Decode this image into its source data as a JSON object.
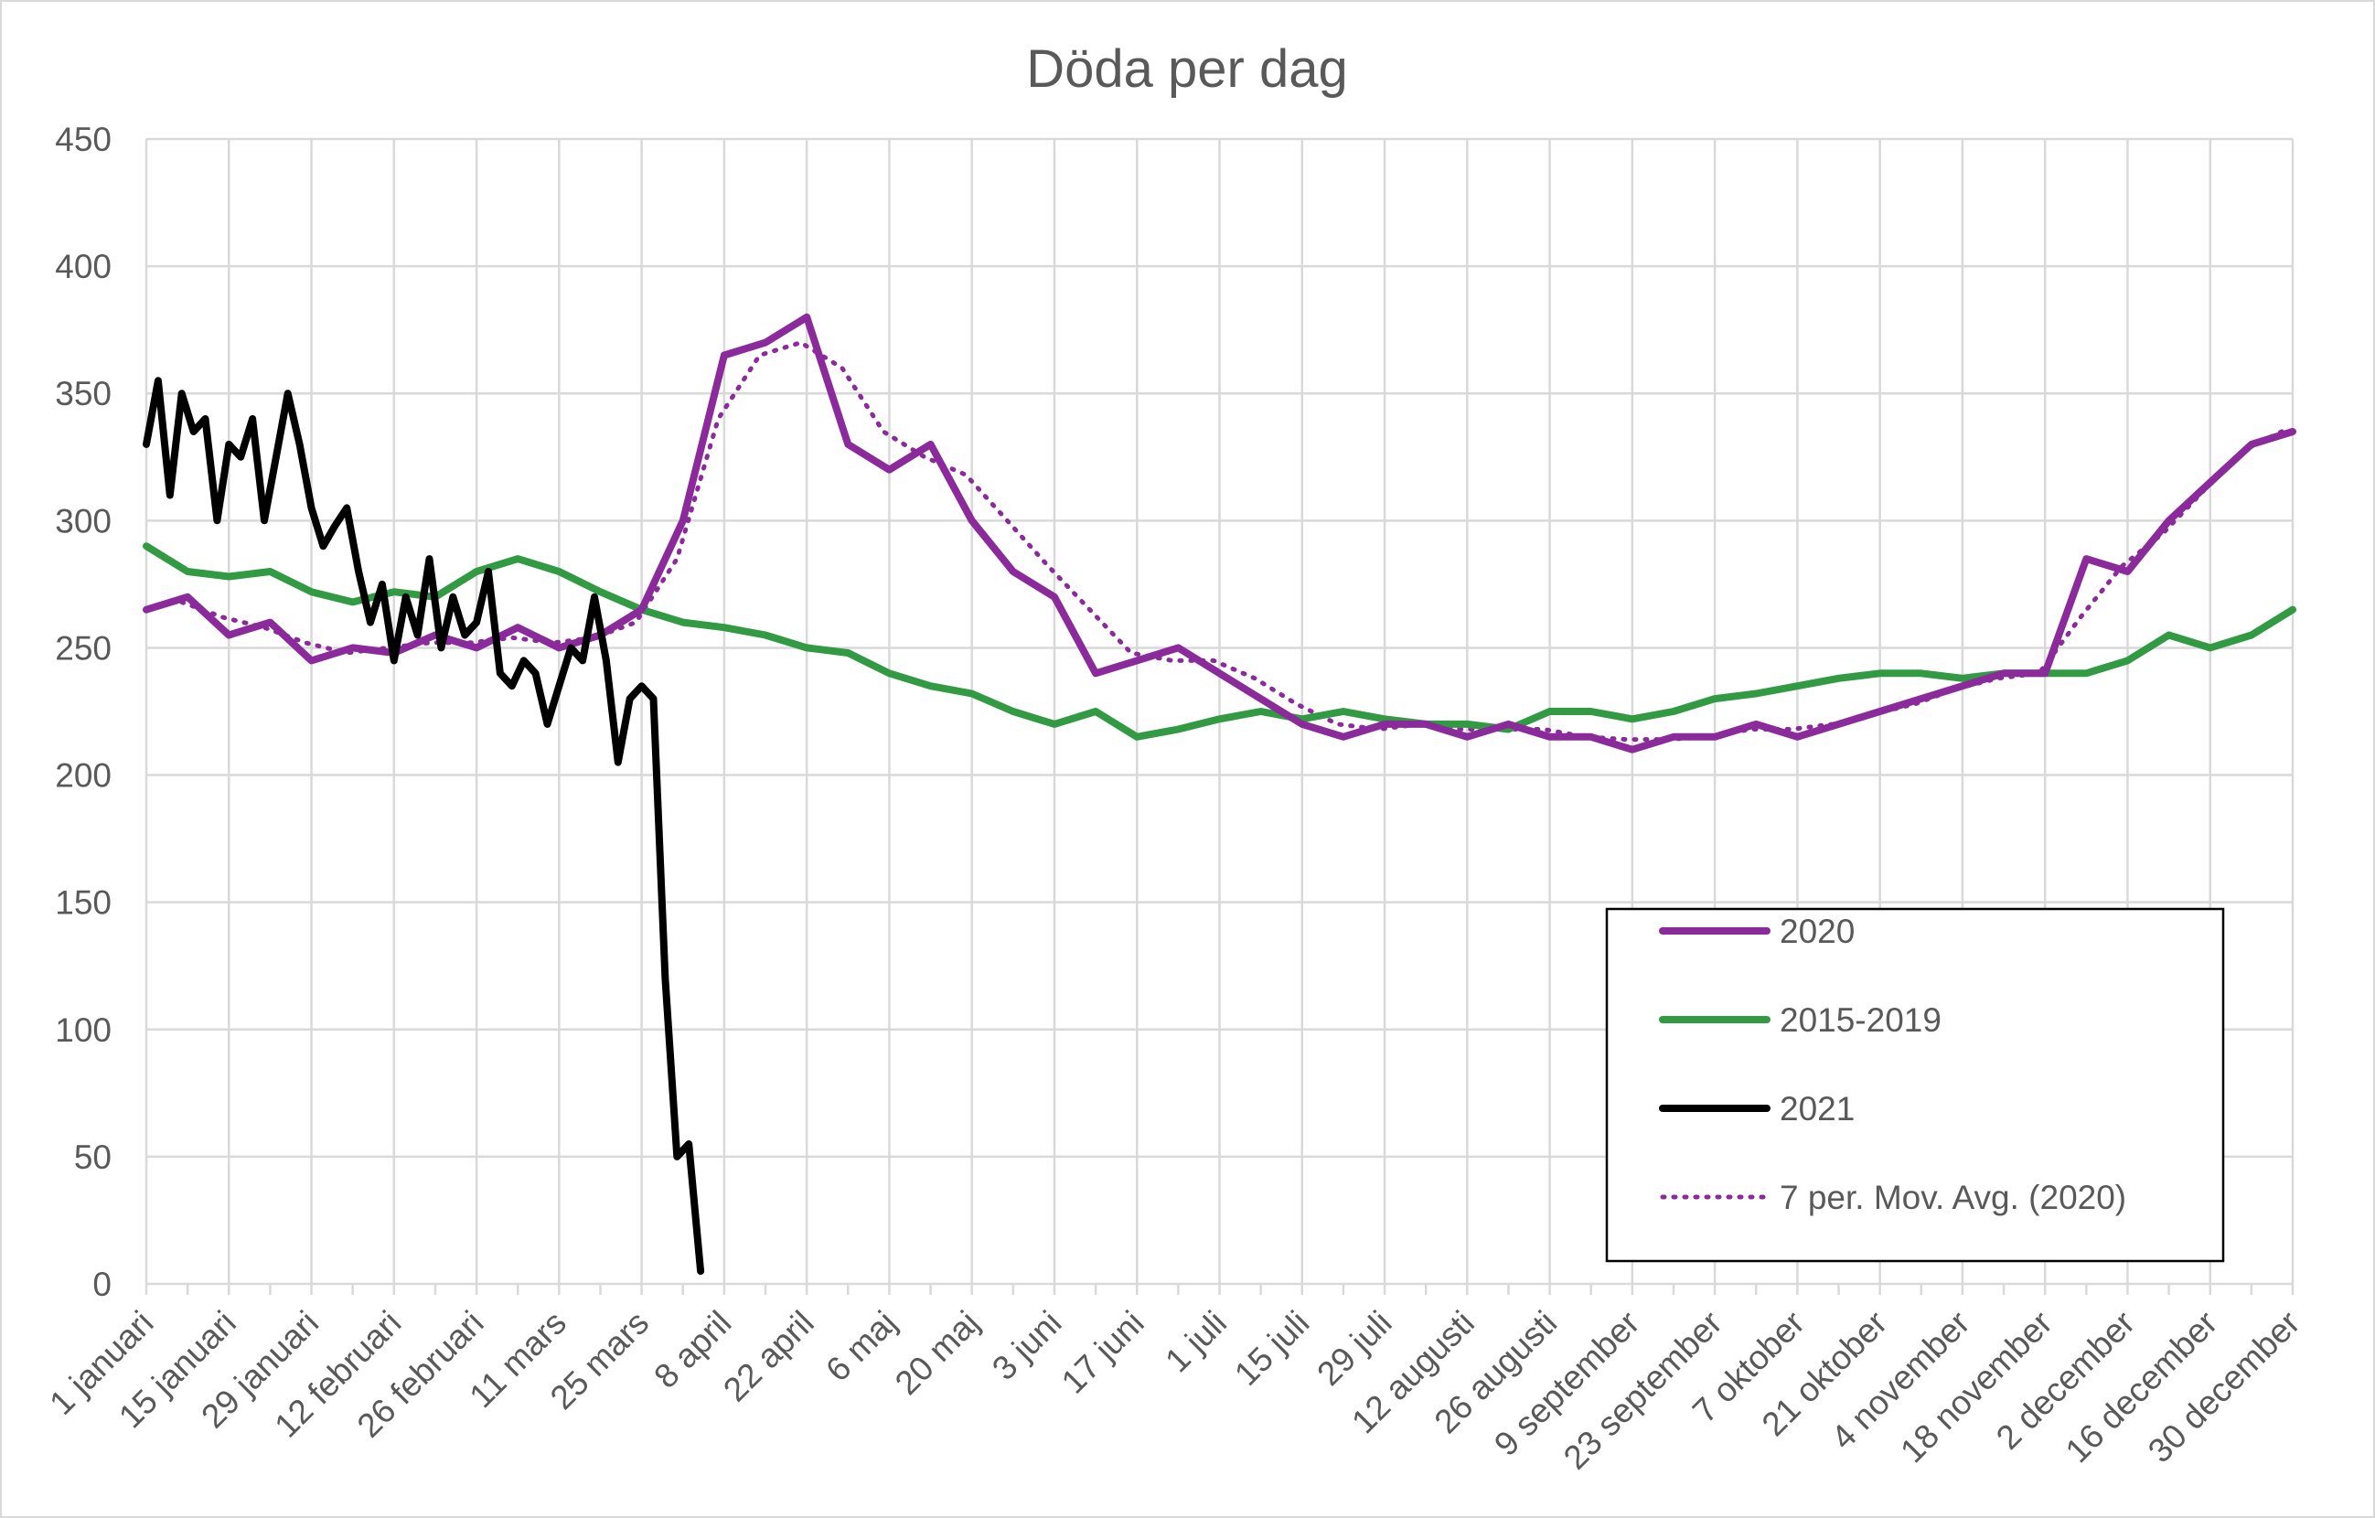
{
  "chart_data": {
    "type": "line",
    "title": "Döda per dag",
    "xlabel": "",
    "ylabel": "",
    "ylim": [
      0,
      450
    ],
    "yticks": [
      0,
      50,
      100,
      150,
      200,
      250,
      300,
      350,
      400,
      450
    ],
    "xlim": [
      0,
      364
    ],
    "grid": true,
    "legend_position": "bottom-right",
    "xtick_days": [
      0,
      14,
      28,
      42,
      56,
      70,
      84,
      98,
      112,
      126,
      140,
      154,
      168,
      182,
      196,
      210,
      224,
      238,
      252,
      266,
      280,
      294,
      308,
      322,
      336,
      350,
      364
    ],
    "xtick_labels": [
      "1 januari",
      "15 januari",
      "29 januari",
      "12 februari",
      "26 februari",
      "11 mars",
      "25 mars",
      "8 april",
      "22 april",
      "6 maj",
      "20 maj",
      "3 juni",
      "17 juni",
      "1 juli",
      "15 juli",
      "29 juli",
      "12 augusti",
      "26 augusti",
      "9 september",
      "23 september",
      "7 oktober",
      "21 oktober",
      "4 november",
      "18 november",
      "2 december",
      "16 december",
      "30 december"
    ],
    "series": [
      {
        "name": "2020",
        "color": "#8B2A9B",
        "style": "solid",
        "x": [
          0,
          7,
          14,
          21,
          28,
          35,
          42,
          49,
          56,
          63,
          70,
          77,
          84,
          91,
          98,
          105,
          112,
          119,
          126,
          133,
          140,
          147,
          154,
          161,
          168,
          175,
          182,
          189,
          196,
          203,
          210,
          217,
          224,
          231,
          238,
          245,
          252,
          259,
          266,
          273,
          280,
          287,
          294,
          301,
          308,
          315,
          322,
          329,
          336,
          343,
          350,
          357,
          364
        ],
        "values": [
          265,
          270,
          255,
          260,
          245,
          250,
          248,
          255,
          250,
          258,
          250,
          255,
          265,
          300,
          365,
          370,
          380,
          330,
          320,
          330,
          300,
          280,
          270,
          240,
          245,
          250,
          240,
          230,
          220,
          215,
          220,
          220,
          215,
          220,
          215,
          215,
          210,
          215,
          215,
          220,
          215,
          220,
          225,
          230,
          235,
          240,
          240,
          285,
          280,
          300,
          315,
          330,
          335
        ]
      },
      {
        "name": "2015-2019",
        "color": "#339A44",
        "style": "solid",
        "x": [
          0,
          7,
          14,
          21,
          28,
          35,
          42,
          49,
          56,
          63,
          70,
          77,
          84,
          91,
          98,
          105,
          112,
          119,
          126,
          133,
          140,
          147,
          154,
          161,
          168,
          175,
          182,
          189,
          196,
          203,
          210,
          217,
          224,
          231,
          238,
          245,
          252,
          259,
          266,
          273,
          280,
          287,
          294,
          301,
          308,
          315,
          322,
          329,
          336,
          343,
          350,
          357,
          364
        ],
        "values": [
          290,
          280,
          278,
          280,
          272,
          268,
          272,
          270,
          280,
          285,
          280,
          272,
          265,
          260,
          258,
          255,
          250,
          248,
          240,
          235,
          232,
          225,
          220,
          225,
          215,
          218,
          222,
          225,
          222,
          225,
          222,
          220,
          220,
          218,
          225,
          225,
          222,
          225,
          230,
          232,
          235,
          238,
          240,
          240,
          238,
          240,
          240,
          240,
          245,
          255,
          250,
          255,
          265
        ]
      },
      {
        "name": "2021",
        "color": "#000000",
        "style": "solid",
        "x": [
          0,
          2,
          4,
          6,
          8,
          10,
          12,
          14,
          16,
          18,
          20,
          22,
          24,
          26,
          28,
          30,
          32,
          34,
          36,
          38,
          40,
          42,
          44,
          46,
          48,
          50,
          52,
          54,
          56,
          58,
          60,
          62,
          64,
          66,
          68,
          70,
          72,
          74,
          76,
          78,
          80,
          82,
          84,
          86,
          88,
          90,
          92,
          94
        ],
        "values": [
          330,
          355,
          310,
          350,
          335,
          340,
          300,
          330,
          325,
          340,
          300,
          325,
          350,
          330,
          305,
          290,
          298,
          305,
          280,
          260,
          275,
          245,
          270,
          255,
          285,
          250,
          270,
          255,
          260,
          280,
          240,
          235,
          245,
          240,
          220,
          235,
          250,
          245,
          270,
          245,
          205,
          230,
          235,
          230,
          120,
          50,
          55,
          5
        ]
      },
      {
        "name": "7 per. Mov. Avg. (2020)",
        "color": "#8B2A9B",
        "style": "dotted",
        "x": [
          6,
          13,
          20,
          27,
          34,
          41,
          48,
          55,
          62,
          69,
          76,
          83,
          90,
          97,
          104,
          111,
          118,
          125,
          132,
          139,
          146,
          153,
          160,
          167,
          174,
          181,
          188,
          195,
          202,
          209,
          216,
          223,
          230,
          237,
          244,
          251,
          258,
          265,
          272,
          279,
          286,
          293,
          300,
          307,
          314,
          321,
          328,
          335,
          342,
          349,
          356,
          363
        ],
        "values": [
          268,
          262,
          258,
          252,
          248,
          250,
          252,
          252,
          254,
          252,
          254,
          260,
          285,
          340,
          365,
          370,
          360,
          335,
          325,
          318,
          300,
          282,
          265,
          248,
          245,
          245,
          238,
          228,
          220,
          218,
          220,
          218,
          218,
          218,
          215,
          214,
          214,
          215,
          218,
          218,
          220,
          224,
          228,
          234,
          238,
          240,
          262,
          282,
          295,
          312,
          328,
          336
        ]
      }
    ]
  }
}
